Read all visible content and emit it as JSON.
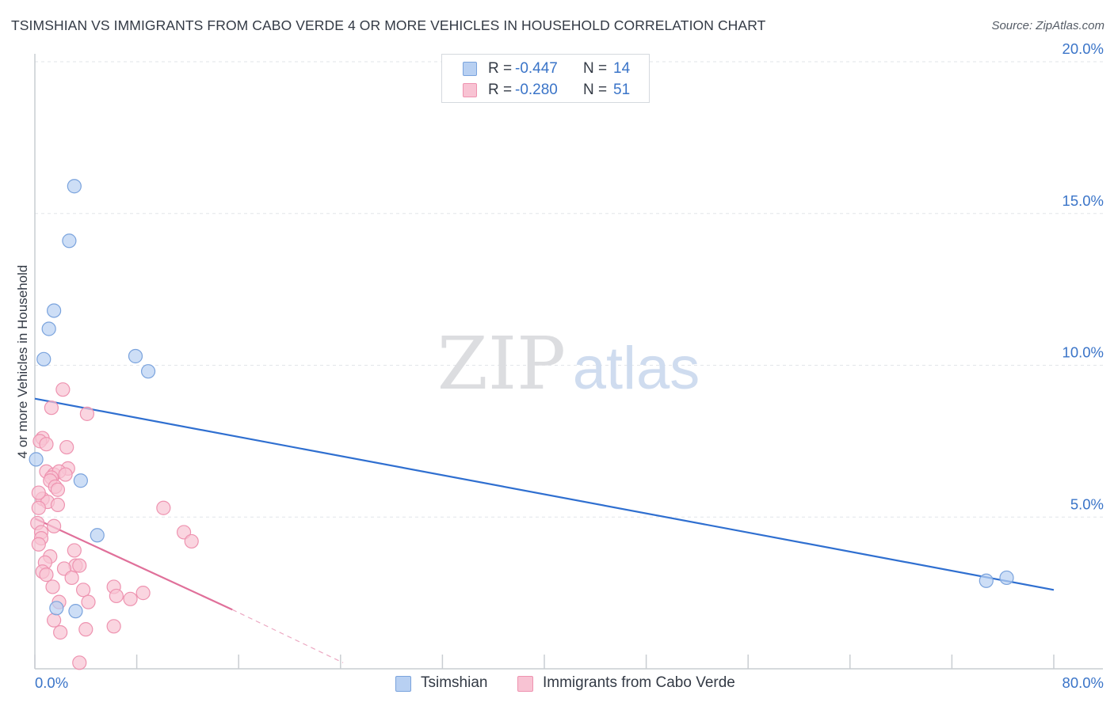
{
  "title": "TSIMSHIAN VS IMMIGRANTS FROM CABO VERDE 4 OR MORE VEHICLES IN HOUSEHOLD CORRELATION CHART",
  "source": "Source: ZipAtlas.com",
  "watermark": {
    "zip": "ZIP",
    "atlas": "atlas"
  },
  "colors": {
    "blue_fill": "#b8d0f2",
    "blue_stroke": "#7aa3dd",
    "blue_line": "#2f6fd0",
    "pink_fill": "#f8c3d3",
    "pink_stroke": "#ee93b0",
    "pink_line": "#e0709a",
    "tick_label": "#3a74c8",
    "grid": "#e2e5e9"
  },
  "legend": {
    "rows": [
      {
        "r_label": "R =",
        "r_value": "-0.447",
        "n_label": "N =",
        "n_value": "14"
      },
      {
        "r_label": "R =",
        "r_value": "-0.280",
        "n_label": "N =",
        "n_value": "51"
      }
    ],
    "bottom": [
      "Tsimshian",
      "Immigrants from Cabo Verde"
    ]
  },
  "chart_data": {
    "type": "scatter",
    "title": "TSIMSHIAN VS IMMIGRANTS FROM CABO VERDE 4 OR MORE VEHICLES IN HOUSEHOLD CORRELATION CHART",
    "xlabel": "",
    "ylabel": "4 or more Vehicles in Household",
    "xlim": [
      0,
      80
    ],
    "ylim": [
      0,
      20
    ],
    "x_tick_labels": [
      "0.0%",
      "80.0%"
    ],
    "y_ticks": [
      5,
      10,
      15,
      20
    ],
    "y_tick_labels": [
      "5.0%",
      "10.0%",
      "15.0%",
      "20.0%"
    ],
    "grid": true,
    "legend_position": "top-center",
    "series": [
      {
        "name": "Tsimshian",
        "color": "#7aa3dd",
        "points": [
          [
            3.1,
            15.9
          ],
          [
            2.7,
            14.1
          ],
          [
            1.5,
            11.8
          ],
          [
            1.1,
            11.2
          ],
          [
            0.7,
            10.2
          ],
          [
            7.9,
            10.3
          ],
          [
            8.9,
            9.8
          ],
          [
            0.1,
            6.9
          ],
          [
            3.6,
            6.2
          ],
          [
            4.9,
            4.4
          ],
          [
            1.7,
            2.0
          ],
          [
            3.2,
            1.9
          ],
          [
            74.7,
            2.9
          ],
          [
            76.3,
            3.0
          ]
        ],
        "trend": {
          "x": [
            0,
            80
          ],
          "y": [
            8.9,
            2.6
          ],
          "style": "solid"
        }
      },
      {
        "name": "Immigrants from Cabo Verde",
        "color": "#ee93b0",
        "points": [
          [
            2.2,
            9.2
          ],
          [
            1.3,
            8.6
          ],
          [
            4.1,
            8.4
          ],
          [
            0.6,
            7.6
          ],
          [
            0.4,
            7.5
          ],
          [
            2.5,
            7.3
          ],
          [
            2.6,
            6.6
          ],
          [
            0.9,
            6.5
          ],
          [
            1.5,
            6.4
          ],
          [
            1.9,
            6.5
          ],
          [
            1.3,
            6.3
          ],
          [
            1.2,
            6.2
          ],
          [
            1.6,
            6.0
          ],
          [
            1.8,
            5.9
          ],
          [
            0.6,
            5.6
          ],
          [
            1.0,
            5.5
          ],
          [
            1.8,
            5.4
          ],
          [
            0.3,
            5.8
          ],
          [
            0.3,
            5.3
          ],
          [
            10.1,
            5.3
          ],
          [
            0.2,
            4.8
          ],
          [
            1.5,
            4.7
          ],
          [
            0.5,
            4.5
          ],
          [
            0.5,
            4.3
          ],
          [
            11.7,
            4.5
          ],
          [
            12.3,
            4.2
          ],
          [
            0.3,
            4.1
          ],
          [
            3.1,
            3.9
          ],
          [
            1.2,
            3.7
          ],
          [
            0.8,
            3.5
          ],
          [
            3.2,
            3.4
          ],
          [
            3.5,
            3.4
          ],
          [
            2.3,
            3.3
          ],
          [
            0.6,
            3.2
          ],
          [
            0.9,
            3.1
          ],
          [
            2.9,
            3.0
          ],
          [
            1.4,
            2.7
          ],
          [
            3.8,
            2.6
          ],
          [
            6.2,
            2.7
          ],
          [
            6.4,
            2.4
          ],
          [
            8.5,
            2.5
          ],
          [
            7.5,
            2.3
          ],
          [
            4.2,
            2.2
          ],
          [
            1.9,
            2.2
          ],
          [
            1.5,
            1.6
          ],
          [
            2.0,
            1.2
          ],
          [
            4.0,
            1.3
          ],
          [
            6.2,
            1.4
          ],
          [
            3.5,
            0.2
          ],
          [
            0.9,
            7.4
          ],
          [
            2.4,
            6.4
          ]
        ],
        "trend": {
          "x": [
            0,
            15.5
          ],
          "y": [
            4.95,
            1.95
          ],
          "style": "solid"
        },
        "trend_extension": {
          "x": [
            15.5,
            24.2
          ],
          "y": [
            1.95,
            0.2
          ],
          "style": "dashed"
        }
      }
    ]
  }
}
